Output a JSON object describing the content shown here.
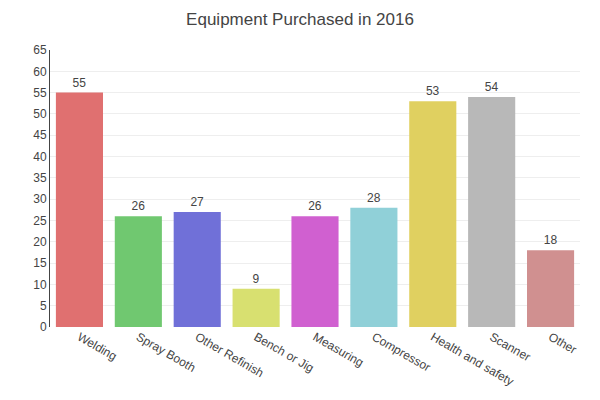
{
  "chart_data": {
    "type": "bar",
    "title": "Equipment Purchased in 2016",
    "categories": [
      "Welding",
      "Spray Booth",
      "Other Refinish",
      "Bench or Jig",
      "Measuring",
      "Compressor",
      "Health and safety",
      "Scanner",
      "Other"
    ],
    "values": [
      55,
      26,
      27,
      9,
      26,
      28,
      53,
      54,
      18
    ],
    "colors": [
      "#E07070",
      "#70C870",
      "#7070D8",
      "#D8E070",
      "#D060D0",
      "#90D0D8",
      "#E0D060",
      "#B8B8B8",
      "#D09090"
    ],
    "ylim": [
      0,
      65
    ],
    "yticks": [
      0,
      5,
      10,
      15,
      20,
      25,
      30,
      35,
      40,
      45,
      50,
      55,
      60,
      65
    ],
    "grid": true,
    "data_labels": true
  }
}
